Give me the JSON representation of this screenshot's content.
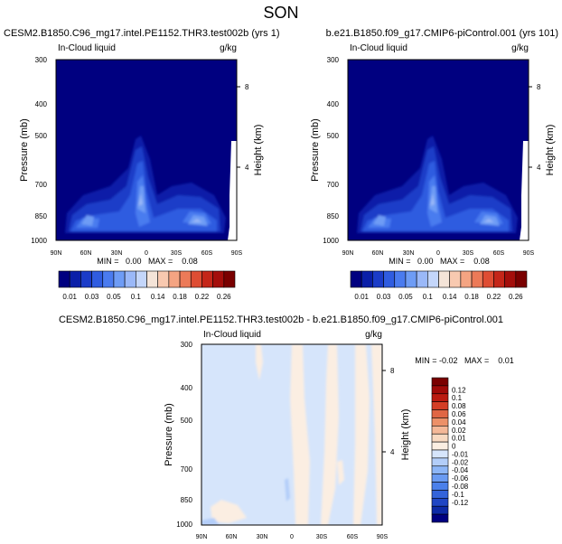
{
  "figure_title": "SON",
  "colors": {
    "top_palette": [
      "#000080",
      "#0a1fa8",
      "#1b3cc8",
      "#2f5ce0",
      "#4a7bef",
      "#6e9cf5",
      "#9ab8f8",
      "#c4d6fa",
      "#f4e4d8",
      "#f8c9b0",
      "#f4a482",
      "#ec7a58",
      "#de4d33",
      "#c42619",
      "#a40e0b",
      "#7a0000"
    ],
    "diff_palette": [
      "#000080",
      "#0d2aa6",
      "#1f46c4",
      "#3363da",
      "#4b80ea",
      "#6a9bf2",
      "#8db6f7",
      "#b3cef9",
      "#d6e5fb",
      "#fbeee2",
      "#f8d9c1",
      "#f4b898",
      "#ec9068",
      "#e06644",
      "#d43d25",
      "#bb1a10",
      "#a00a08",
      "#7a0000"
    ],
    "land_mask": "#ffffff"
  },
  "chart_data": [
    {
      "type": "heatmap",
      "title_left": "CESM2.B1850.C96_mg17.intel.PE1152.THR3.test002b (yrs 1)",
      "subtitle_left": "In-Cloud liquid",
      "subtitle_right": "g/kg",
      "ylabel": "Pressure (mb)",
      "ylabel_right": "Height (km)",
      "x_ticks": [
        "90N",
        "60N",
        "30N",
        "0",
        "30S",
        "60S",
        "90S"
      ],
      "y_ticks": [
        "300",
        "400",
        "500",
        "700",
        "850",
        "1000"
      ],
      "y_ticks_right": [
        "8",
        "4"
      ],
      "stats": "MIN =   0.00   MAX =    0.08",
      "ylim": [
        1000,
        300
      ],
      "colorbar_labels": [
        "0.01",
        "0.03",
        "0.05",
        "0.1",
        "0.14",
        "0.18",
        "0.22",
        "0.26"
      ]
    },
    {
      "type": "heatmap",
      "title_right": "b.e21.B1850.f09_g17.CMIP6-piControl.001 (yrs 101)",
      "subtitle_left": "In-Cloud liquid",
      "subtitle_right": "g/kg",
      "ylabel": "Pressure (mb)",
      "ylabel_right": "Height (km)",
      "x_ticks": [
        "90N",
        "60N",
        "30N",
        "0",
        "30S",
        "60S",
        "90S"
      ],
      "y_ticks": [
        "300",
        "400",
        "500",
        "700",
        "850",
        "1000"
      ],
      "y_ticks_right": [
        "8",
        "4"
      ],
      "stats": "MIN =   0.00   MAX =    0.08",
      "ylim": [
        1000,
        300
      ],
      "colorbar_labels": [
        "0.01",
        "0.03",
        "0.05",
        "0.1",
        "0.14",
        "0.18",
        "0.22",
        "0.26"
      ]
    },
    {
      "type": "heatmap",
      "title": "CESM2.B1850.C96_mg17.intel.PE1152.THR3.test002b - b.e21.B1850.f09_g17.CMIP6-piControl.001",
      "subtitle_left": "In-Cloud liquid",
      "subtitle_right": "g/kg",
      "ylabel": "Pressure (mb)",
      "ylabel_right": "Height (km)",
      "x_ticks": [
        "90N",
        "60N",
        "30N",
        "0",
        "30S",
        "60S",
        "90S"
      ],
      "y_ticks": [
        "300",
        "400",
        "500",
        "700",
        "850",
        "1000"
      ],
      "y_ticks_right": [
        "8",
        "4"
      ],
      "stats": "MIN = -0.02   MAX =    0.01",
      "ylim": [
        1000,
        300
      ],
      "colorbar_labels": [
        "0.12",
        "0.1",
        "0.08",
        "0.06",
        "0.04",
        "0.02",
        "0.01",
        "0",
        "-0.01",
        "-0.02",
        "-0.04",
        "-0.06",
        "-0.08",
        "-0.1",
        "-0.12"
      ]
    }
  ]
}
